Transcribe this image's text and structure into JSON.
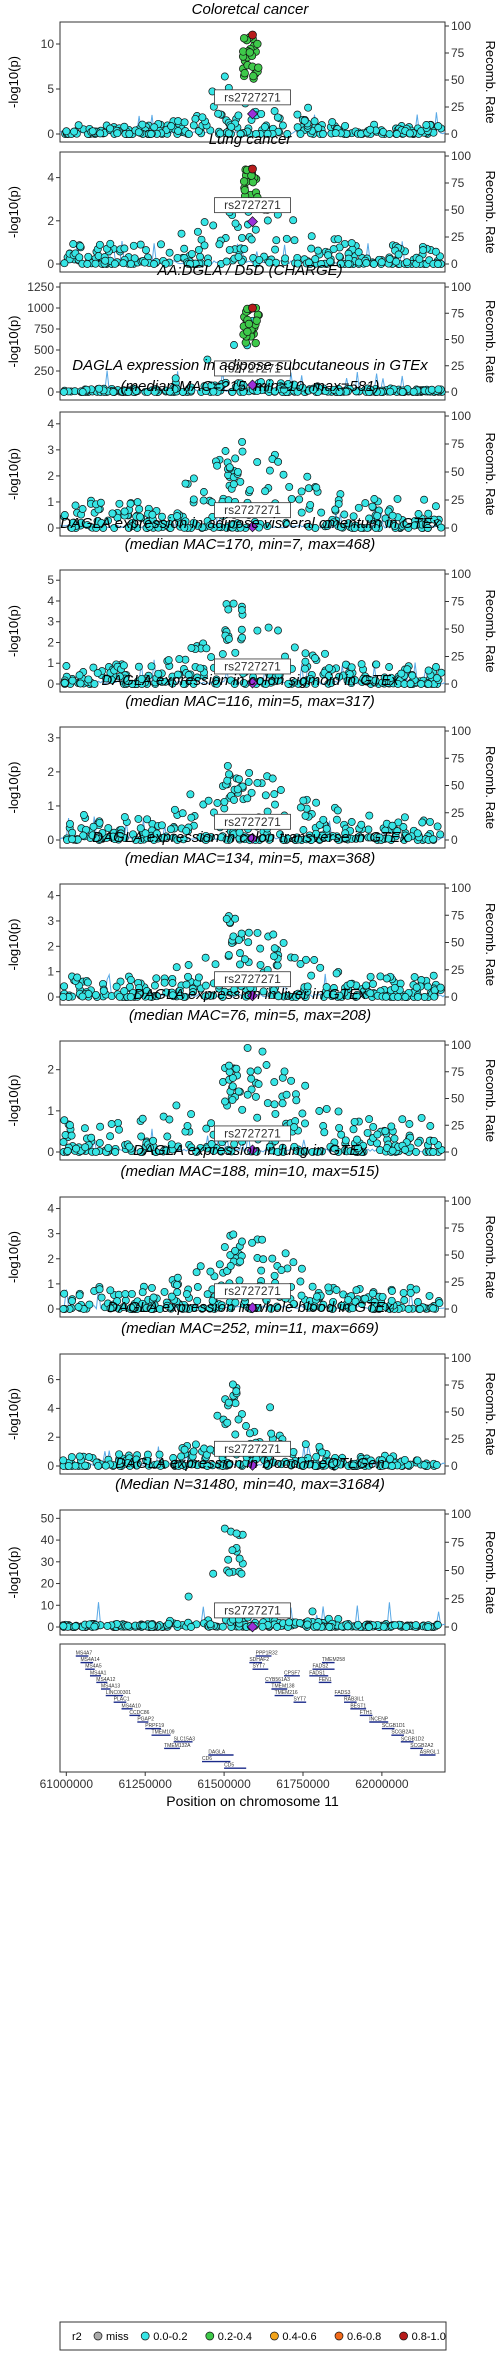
{
  "figure": {
    "xlabel": "Position on chromosome 11",
    "x_ticks": [
      "61000000",
      "61250000",
      "61500000",
      "61750000",
      "62000000"
    ],
    "y_left_label": "-log10(p)",
    "y_right_label": "Recomb. Rate",
    "lead_snp": "rs2727271",
    "legend_title": "r2",
    "legend_items": [
      {
        "label": "miss",
        "color": "#aaaaaa"
      },
      {
        "label": "0.0-0.2",
        "color": "#36e5e5"
      },
      {
        "label": "0.2-0.4",
        "color": "#3ec94a"
      },
      {
        "label": "0.4-0.6",
        "color": "#f2a31a"
      },
      {
        "label": "0.6-0.8",
        "color": "#f26a1a"
      },
      {
        "label": "0.8-1.0",
        "color": "#b71c1c"
      }
    ],
    "lead_color": "#9b30d9",
    "point_color": "#36e5e5",
    "recomb_color": "#5aa9e6"
  },
  "chart_data": [
    {
      "type": "scatter",
      "title": "Coloretcal cancer",
      "subtitle": "",
      "ylim": [
        0,
        12
      ],
      "yticks": [
        0,
        5,
        10
      ],
      "peak": 9.6,
      "top_peak": 11,
      "bg": 1.6,
      "green_cluster": true
    },
    {
      "type": "scatter",
      "title": "Lung cancer",
      "subtitle": "",
      "ylim": [
        0,
        5
      ],
      "yticks": [
        0,
        2,
        4
      ],
      "peak": 3.0,
      "top_peak": 4.4,
      "bg": 1.4,
      "green_cluster": true
    },
    {
      "type": "scatter",
      "title": "AA:DGLA / D5D (CHARGE)",
      "subtitle": "",
      "ylim": [
        0,
        1250
      ],
      "yticks": [
        0,
        250,
        500,
        750,
        1000,
        1250
      ],
      "peak": 980,
      "top_peak": 1000,
      "bg": 60,
      "green_cluster": true
    },
    {
      "type": "scatter",
      "title": "DAGLA expression in adipose subcutaneous in GTEx",
      "subtitle": "(median MAC=215, min=10, max=581)",
      "ylim": [
        0,
        4.3
      ],
      "yticks": [
        0,
        1,
        2,
        3,
        4
      ],
      "peak": 3.0,
      "top_peak": 3.2,
      "bg": 1.6,
      "green_cluster": false
    },
    {
      "type": "scatter",
      "title": "DAGLA expression in adipose visceral omentum in GTEx",
      "subtitle": "(median MAC=170, min=7, max=468)",
      "ylim": [
        0,
        5.3
      ],
      "yticks": [
        0,
        1,
        2,
        3,
        4,
        5
      ],
      "peak": 4.2,
      "top_peak": 4.2,
      "bg": 1.4,
      "green_cluster": false
    },
    {
      "type": "scatter",
      "title": "DAGLA expression in colon sigmoid in GTEx",
      "subtitle": "(median MAC=116, min=5, max=317)",
      "ylim": [
        0,
        3.2
      ],
      "yticks": [
        0,
        1,
        2,
        3
      ],
      "peak": 2.2,
      "top_peak": 2.2,
      "bg": 1.1,
      "green_cluster": false
    },
    {
      "type": "scatter",
      "title": "DAGLA expression in colon transverse in GTEx",
      "subtitle": "(median MAC=134, min=5, max=368)",
      "ylim": [
        0,
        4.3
      ],
      "yticks": [
        0,
        1,
        2,
        3,
        4
      ],
      "peak": 3.2,
      "top_peak": 3.2,
      "bg": 1.2,
      "green_cluster": false
    },
    {
      "type": "scatter",
      "title": "DAGLA expression in liver in GTEx",
      "subtitle": "(median MAC=76, min=5, max=208)",
      "ylim": [
        0,
        2.6
      ],
      "yticks": [
        0,
        1,
        2
      ],
      "peak": 2.1,
      "top_peak": 2.3,
      "bg": 1.2,
      "green_cluster": false
    },
    {
      "type": "scatter",
      "title": "DAGLA expression in lung in GTEx",
      "subtitle": "(median MAC=188, min=10, max=515)",
      "ylim": [
        0,
        4.3
      ],
      "yticks": [
        0,
        1,
        2,
        3,
        4
      ],
      "peak": 3.0,
      "top_peak": 3.0,
      "bg": 1.3,
      "green_cluster": false
    },
    {
      "type": "scatter",
      "title": "DAGLA expression in whole blood in GTEx",
      "subtitle": "(median MAC=252, min=11, max=669)",
      "ylim": [
        0,
        7.5
      ],
      "yticks": [
        0,
        2,
        4,
        6
      ],
      "peak": 5.8,
      "top_peak": 5.8,
      "bg": 1.2,
      "green_cluster": false
    },
    {
      "type": "scatter",
      "title": "DAGLA expression in blood in eQTLGen",
      "subtitle": "(Median N=31480, min=40, max=31684)",
      "ylim": [
        0,
        52
      ],
      "yticks": [
        0,
        10,
        20,
        30,
        40,
        50
      ],
      "peak": 46,
      "top_peak": 46,
      "bg": 2,
      "green_cluster": false
    }
  ],
  "genes": [
    {
      "name": "MS4A7",
      "row": 0,
      "start": 61030000,
      "end": 61070000
    },
    {
      "name": "MS4A14",
      "row": 1,
      "start": 61045000,
      "end": 61085000
    },
    {
      "name": "MS4A5",
      "row": 2,
      "start": 61060000,
      "end": 61090000
    },
    {
      "name": "MS4A1",
      "row": 3,
      "start": 61075000,
      "end": 61110000
    },
    {
      "name": "MS4A12",
      "row": 4,
      "start": 61095000,
      "end": 61130000
    },
    {
      "name": "MS4A13",
      "row": 5,
      "start": 61110000,
      "end": 61140000
    },
    {
      "name": "LINC00301",
      "row": 6,
      "start": 61125000,
      "end": 61180000
    },
    {
      "name": "PLAC1",
      "row": 7,
      "start": 61150000,
      "end": 61190000
    },
    {
      "name": "MS4A10",
      "row": 8,
      "start": 61175000,
      "end": 61210000
    },
    {
      "name": "CCDC86",
      "row": 9,
      "start": 61200000,
      "end": 61235000
    },
    {
      "name": "PGAP2",
      "row": 10,
      "start": 61225000,
      "end": 61260000
    },
    {
      "name": "PRPF19",
      "row": 11,
      "start": 61250000,
      "end": 61300000
    },
    {
      "name": "TMEM109",
      "row": 12,
      "start": 61270000,
      "end": 61330000
    },
    {
      "name": "TMEM132A",
      "row": 14,
      "start": 61310000,
      "end": 61360000
    },
    {
      "name": "SLC15A3",
      "row": 13,
      "start": 61340000,
      "end": 61400000
    },
    {
      "name": "CD6",
      "row": 16,
      "start": 61430000,
      "end": 61520000
    },
    {
      "name": "CD5",
      "row": 17,
      "start": 61500000,
      "end": 61570000
    },
    {
      "name": "DAGLA",
      "row": 15,
      "start": 61450000,
      "end": 61530000
    },
    {
      "name": "SDHAF2",
      "row": 1,
      "start": 61580000,
      "end": 61620000
    },
    {
      "name": "PPP1R32",
      "row": 0,
      "start": 61600000,
      "end": 61650000
    },
    {
      "name": "SYT7",
      "row": 2,
      "start": 61590000,
      "end": 61640000
    },
    {
      "name": "CYB561A3",
      "row": 4,
      "start": 61630000,
      "end": 61680000
    },
    {
      "name": "TMEM138",
      "row": 5,
      "start": 61650000,
      "end": 61700000
    },
    {
      "name": "TMEM216",
      "row": 6,
      "start": 61660000,
      "end": 61720000
    },
    {
      "name": "CPSF7",
      "row": 3,
      "start": 61690000,
      "end": 61740000
    },
    {
      "name": "SYT7",
      "row": 7,
      "start": 61720000,
      "end": 61760000
    },
    {
      "name": "FADS2",
      "row": 2,
      "start": 61780000,
      "end": 61850000
    },
    {
      "name": "FADS1",
      "row": 3,
      "start": 61770000,
      "end": 61830000
    },
    {
      "name": "FEN1",
      "row": 4,
      "start": 61800000,
      "end": 61840000
    },
    {
      "name": "TMEM258",
      "row": 1,
      "start": 61810000,
      "end": 61850000
    },
    {
      "name": "FADS3",
      "row": 6,
      "start": 61850000,
      "end": 61900000
    },
    {
      "name": "RAB3IL1",
      "row": 7,
      "start": 61880000,
      "end": 61920000
    },
    {
      "name": "BEST1",
      "row": 8,
      "start": 61900000,
      "end": 61950000
    },
    {
      "name": "FTH1",
      "row": 9,
      "start": 61930000,
      "end": 61970000
    },
    {
      "name": "INCENP",
      "row": 10,
      "start": 61960000,
      "end": 62020000
    },
    {
      "name": "SCGB1D1",
      "row": 11,
      "start": 62000000,
      "end": 62040000
    },
    {
      "name": "SCGB2A1",
      "row": 12,
      "start": 62030000,
      "end": 62070000
    },
    {
      "name": "SCGB1D2",
      "row": 13,
      "start": 62060000,
      "end": 62100000
    },
    {
      "name": "SCGB2A2",
      "row": 14,
      "start": 62090000,
      "end": 62130000
    },
    {
      "name": "ASRGL1",
      "row": 15,
      "start": 62120000,
      "end": 62170000
    }
  ]
}
